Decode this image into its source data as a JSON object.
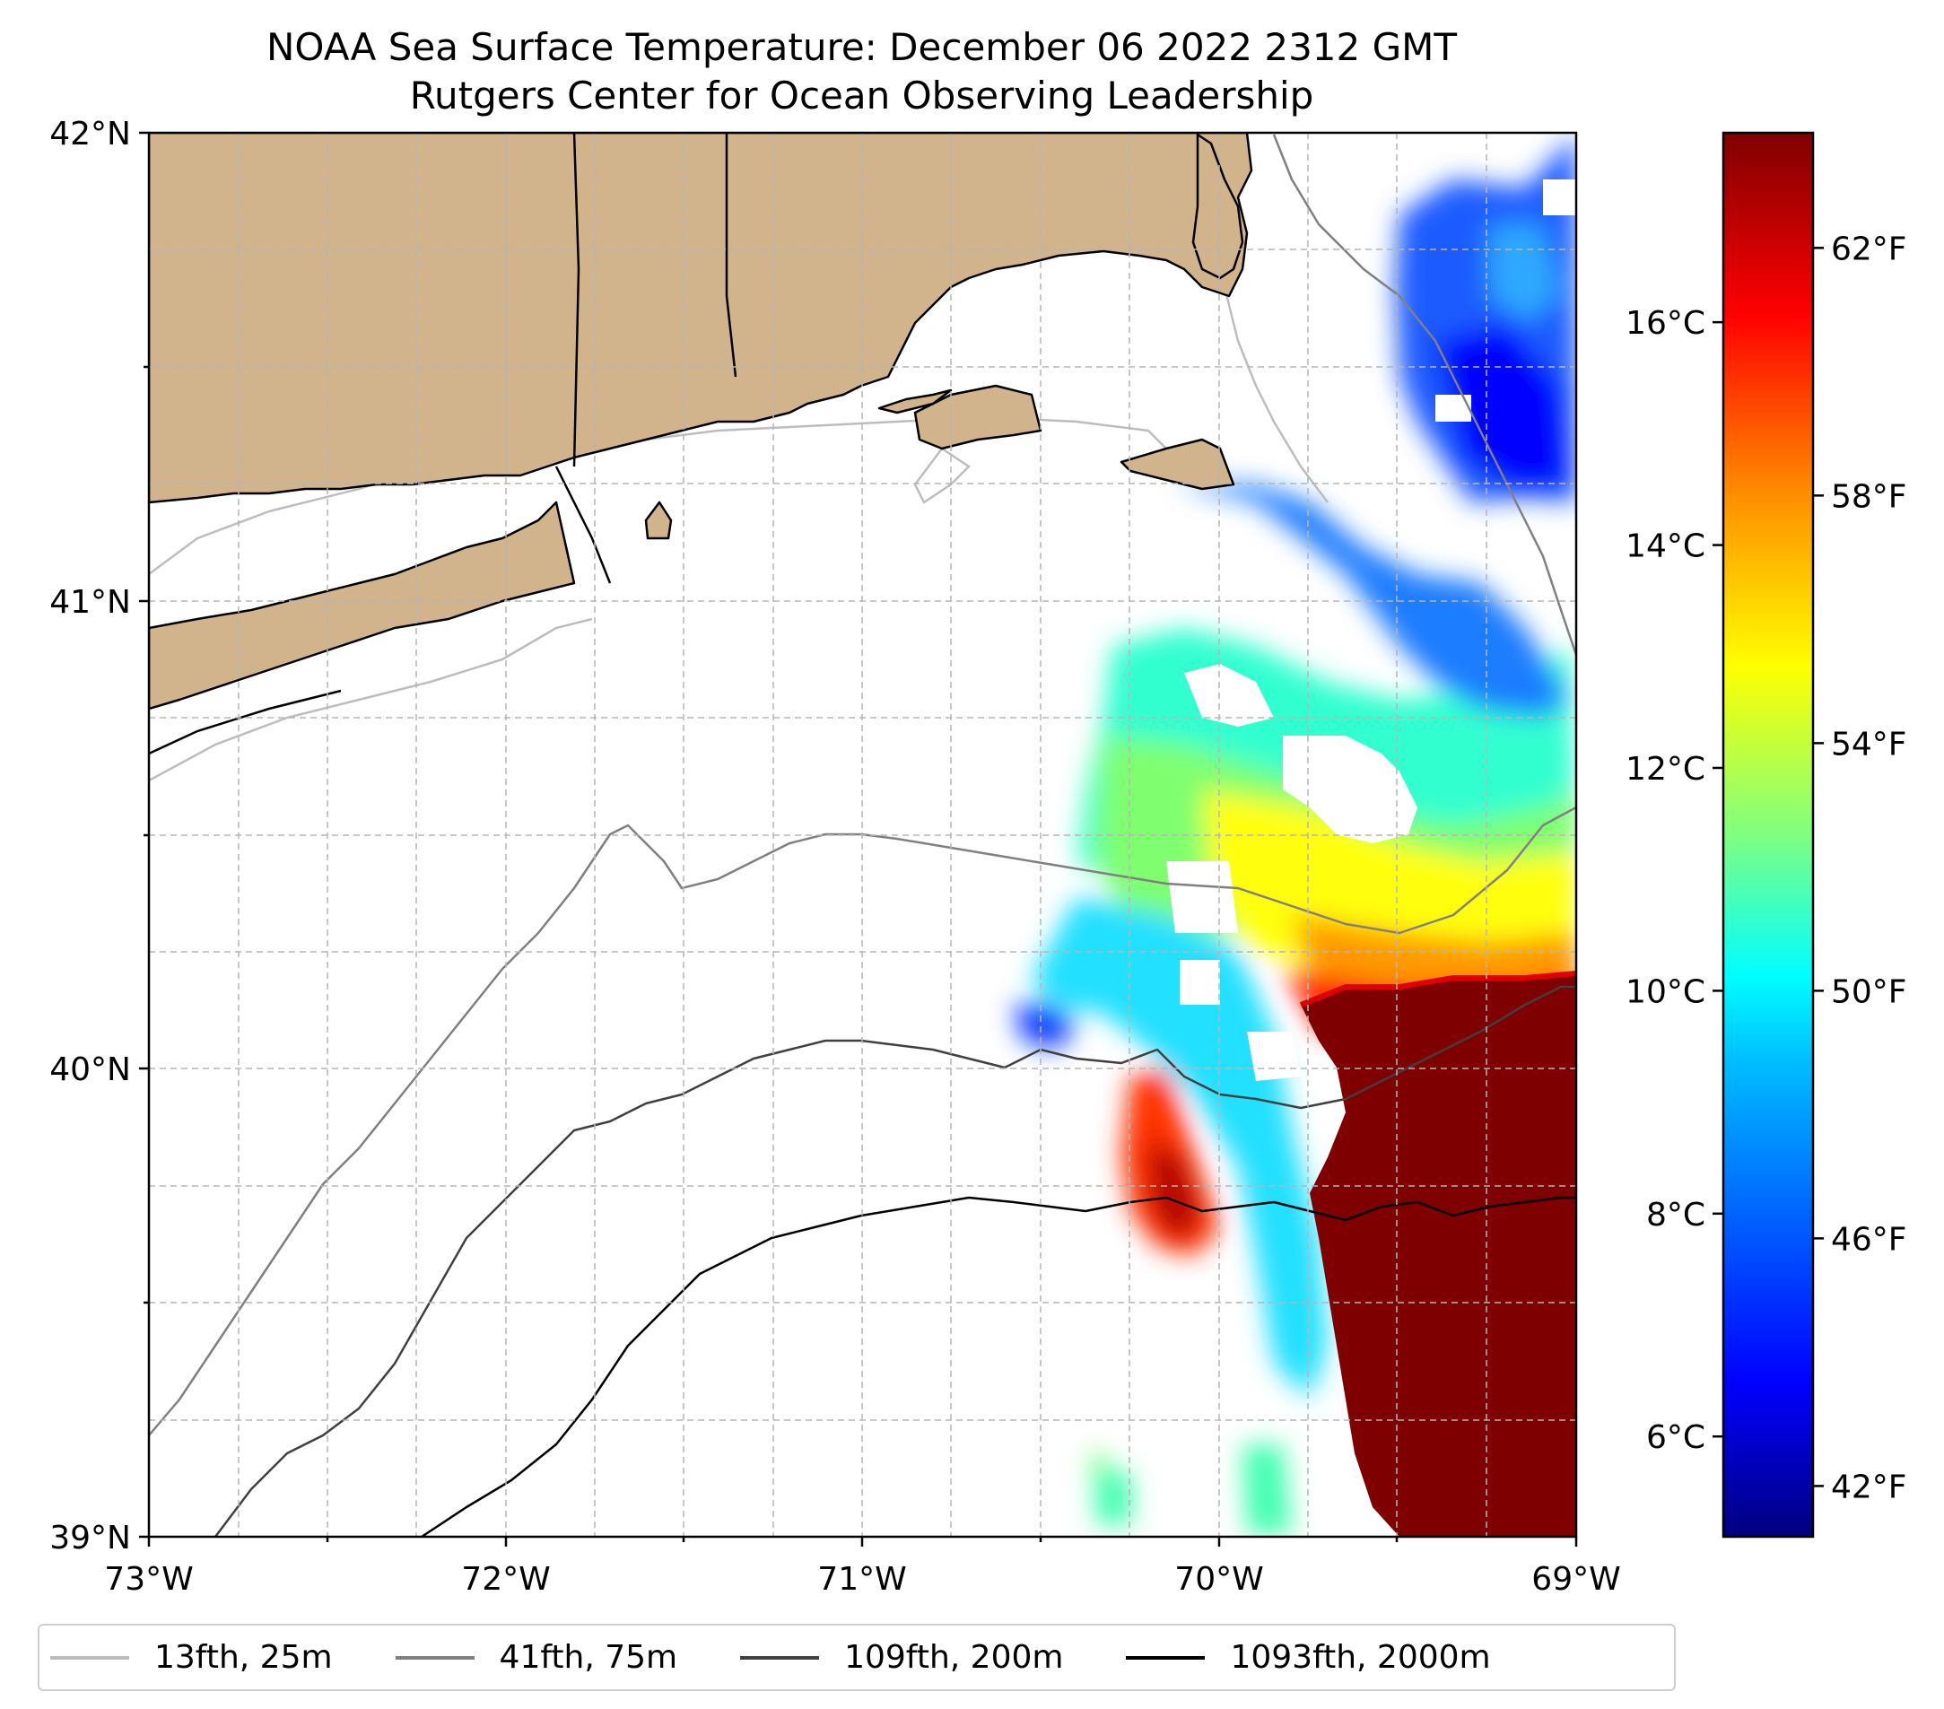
{
  "title_lines": [
    "NOAA Sea Surface Temperature: December 06 2022 2312 GMT",
    "Rutgers Center for Ocean Observing Leadership"
  ],
  "map": {
    "lon_labels": [
      "73°W",
      "72°W",
      "71°W",
      "70°W",
      "69°W"
    ],
    "lat_labels": [
      "42°N",
      "41°N",
      "40°N",
      "39°N"
    ],
    "lon_range": [
      -73,
      -69
    ],
    "lat_range": [
      39,
      42
    ],
    "land_color": "#d2b48c",
    "sst_palette": [
      "#00007f",
      "#0000ff",
      "#007fff",
      "#00ffff",
      "#7fff7f",
      "#ffff00",
      "#ff7f00",
      "#ff0000",
      "#7f0000"
    ]
  },
  "colorbar": {
    "celsius_labels": [
      "16°C",
      "14°C",
      "12°C",
      "10°C",
      "8°C",
      "6°C"
    ],
    "celsius_values": [
      16,
      14,
      12,
      10,
      8,
      6
    ],
    "fahrenheit_labels": [
      "62°F",
      "58°F",
      "54°F",
      "50°F",
      "46°F",
      "42°F"
    ],
    "fahrenheit_values": [
      62,
      58,
      54,
      50,
      46,
      42
    ],
    "range_c": [
      5.1,
      17.7
    ]
  },
  "legend": [
    {
      "label": "13fth, 25m",
      "color": "#bdbdbd"
    },
    {
      "label": "41fth, 75m",
      "color": "#808080"
    },
    {
      "label": "109fth, 200m",
      "color": "#404040"
    },
    {
      "label": "1093fth, 2000m",
      "color": "#000000"
    }
  ]
}
